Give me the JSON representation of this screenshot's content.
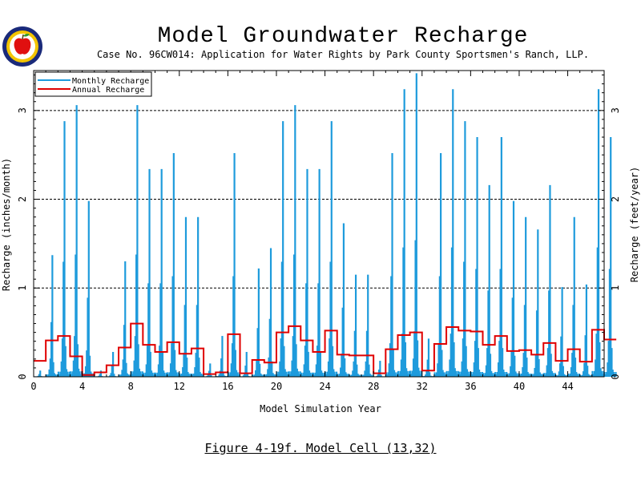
{
  "header": {
    "title": "Model Groundwater Recharge",
    "subtitle": "Case No. 96CW014: Application for Water Rights by Park County Sportsmen's Ranch, LLP."
  },
  "caption": "Figure 4-19f.  Model Cell (13,32)",
  "colors": {
    "monthly": "#1e9bdc",
    "annual": "#e00000",
    "grid": "#000000"
  },
  "chart_data": {
    "type": "line",
    "xlabel": "Model Simulation Year",
    "ylabel": "Recharge (inches/month)",
    "y2label": "Recharge (feet/year)",
    "xlim": [
      0,
      47
    ],
    "ylim": [
      0,
      3.45
    ],
    "xticks": [
      "0",
      "4",
      "8",
      "12",
      "16",
      "20",
      "24",
      "28",
      "32",
      "36",
      "40",
      "44"
    ],
    "yticks": [
      "0",
      "1",
      "2",
      "3"
    ],
    "y2ticks": [
      "0",
      "1",
      "2",
      "3"
    ],
    "legend": {
      "position": "top-left",
      "entries": [
        "Monthly Recharge",
        "Annual Recharge"
      ]
    },
    "series": [
      {
        "name": "Monthly Recharge",
        "style": "monthly spikes",
        "annual_peaks": [
          0.07,
          1.37,
          2.88,
          3.06,
          1.98,
          0.07,
          0.28,
          1.3,
          3.06,
          2.34,
          2.34,
          2.52,
          1.8,
          1.8,
          0.15,
          0.46,
          2.52,
          0.28,
          1.22,
          1.45,
          2.88,
          3.06,
          2.34,
          2.34,
          2.88,
          1.73,
          1.15,
          1.15,
          0.18,
          2.52,
          3.24,
          3.42,
          0.43,
          2.52,
          3.24,
          2.88,
          2.7,
          2.16,
          2.7,
          1.98,
          1.8,
          1.66,
          2.16,
          1.01,
          1.8,
          1.04,
          3.24,
          2.7
        ]
      },
      {
        "name": "Annual Recharge",
        "style": "step",
        "values": [
          0.18,
          0.41,
          0.46,
          0.23,
          0.02,
          0.05,
          0.13,
          0.33,
          0.6,
          0.36,
          0.28,
          0.39,
          0.26,
          0.32,
          0.03,
          0.05,
          0.48,
          0.04,
          0.19,
          0.16,
          0.5,
          0.57,
          0.41,
          0.28,
          0.52,
          0.25,
          0.24,
          0.24,
          0.04,
          0.31,
          0.47,
          0.5,
          0.07,
          0.37,
          0.56,
          0.52,
          0.51,
          0.36,
          0.46,
          0.29,
          0.3,
          0.25,
          0.38,
          0.18,
          0.31,
          0.17,
          0.53,
          0.42
        ]
      }
    ]
  }
}
